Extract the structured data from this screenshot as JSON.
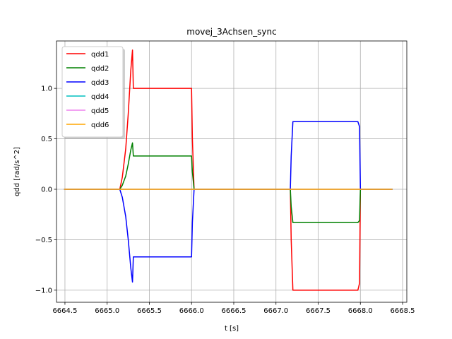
{
  "chart_data": {
    "type": "line",
    "title": "movej_3Achsen_sync",
    "xlabel": "t [s]",
    "ylabel": "qdd [rad/s^2]",
    "xlim": [
      6664.4,
      6668.55
    ],
    "ylim": [
      -1.12,
      1.47
    ],
    "xticks": [
      6664.5,
      6665.0,
      6665.5,
      6666.0,
      6666.5,
      6667.0,
      6667.5,
      6668.0,
      6668.5
    ],
    "xtick_labels": [
      "6664.5",
      "6665.0",
      "6665.5",
      "6666.0",
      "6666.5",
      "6667.0",
      "6667.5",
      "6668.0",
      "6668.5"
    ],
    "yticks": [
      -1.0,
      -0.5,
      0.0,
      0.5,
      1.0
    ],
    "ytick_labels": [
      "−1.0",
      "−0.5",
      "0.0",
      "0.5",
      "1.0"
    ],
    "grid": true,
    "legend_position": "upper-left",
    "series": [
      {
        "name": "qdd1",
        "color": "#ff0000",
        "x": [
          6664.49,
          6665.15,
          6665.18,
          6665.22,
          6665.25,
          6665.28,
          6665.3,
          6665.31,
          6665.32,
          6666.0,
          6666.01,
          6666.03,
          6667.17,
          6667.18,
          6667.2,
          6667.97,
          6667.99,
          6668.0,
          6668.38
        ],
        "y": [
          0,
          0,
          0.12,
          0.4,
          0.75,
          1.18,
          1.38,
          1.0,
          1.0,
          1.0,
          0.5,
          0,
          0,
          -0.5,
          -1.0,
          -1.0,
          -0.93,
          0,
          0
        ]
      },
      {
        "name": "qdd2",
        "color": "#008000",
        "x": [
          6664.49,
          6665.15,
          6665.18,
          6665.22,
          6665.25,
          6665.28,
          6665.3,
          6665.31,
          6665.32,
          6666.0,
          6666.01,
          6666.03,
          6667.17,
          6667.18,
          6667.2,
          6667.97,
          6667.99,
          6668.0,
          6668.38
        ],
        "y": [
          0,
          0,
          0.04,
          0.13,
          0.25,
          0.39,
          0.46,
          0.33,
          0.33,
          0.33,
          0.17,
          0,
          0,
          -0.17,
          -0.33,
          -0.33,
          -0.31,
          0,
          0
        ]
      },
      {
        "name": "qdd3",
        "color": "#0000ff",
        "x": [
          6664.49,
          6665.15,
          6665.18,
          6665.22,
          6665.25,
          6665.28,
          6665.3,
          6665.31,
          6665.32,
          6666.0,
          6666.01,
          6666.03,
          6667.17,
          6667.18,
          6667.2,
          6667.97,
          6667.99,
          6668.0,
          6668.38
        ],
        "y": [
          0,
          0,
          -0.08,
          -0.27,
          -0.5,
          -0.78,
          -0.92,
          -0.67,
          -0.67,
          -0.67,
          -0.33,
          0,
          0,
          0.33,
          0.67,
          0.67,
          0.62,
          0,
          0
        ]
      },
      {
        "name": "qdd4",
        "color": "#00bfbf",
        "x": [
          6664.49,
          6668.38
        ],
        "y": [
          0,
          0
        ]
      },
      {
        "name": "qdd5",
        "color": "#ee82ee",
        "x": [
          6664.49,
          6668.38
        ],
        "y": [
          0,
          0
        ]
      },
      {
        "name": "qdd6",
        "color": "#ffa500",
        "x": [
          6664.49,
          6668.38
        ],
        "y": [
          0,
          0
        ]
      }
    ]
  }
}
